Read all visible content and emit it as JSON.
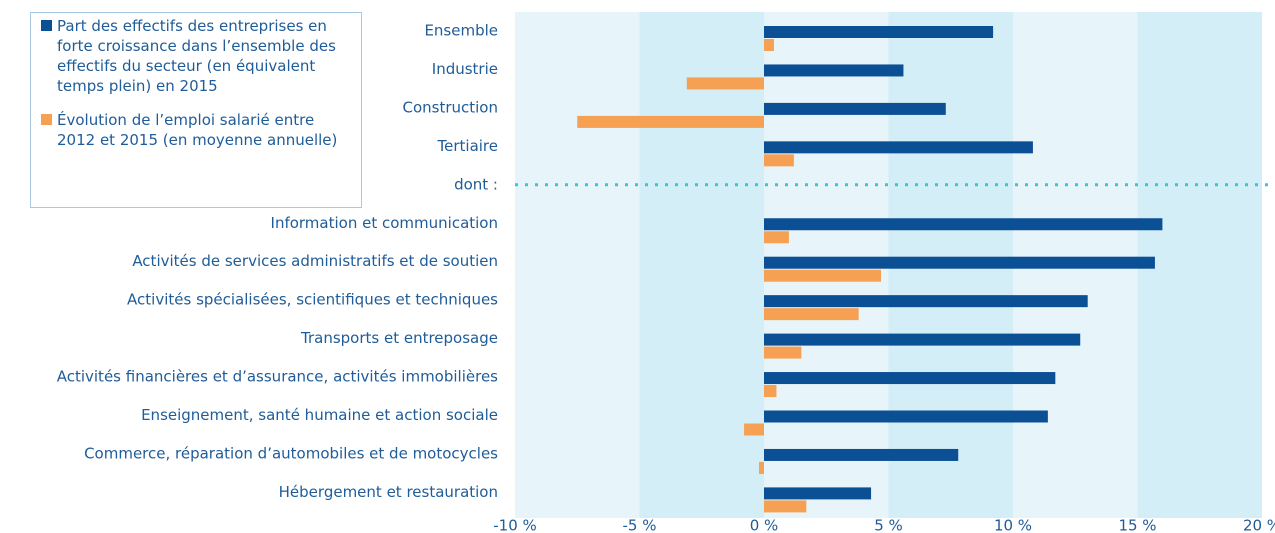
{
  "chart_data": {
    "type": "hbar",
    "categories": [
      "Ensemble",
      "Industrie",
      "Construction",
      "Tertiaire",
      "dont :",
      "Information et communication",
      "Activités de services administratifs et de soutien",
      "Activités spécialisées, scientifiques et techniques",
      "Transports et entreposage",
      "Activités financières et d’assurance, activités immobilières",
      "Enseignement, santé humaine et action sociale",
      "Commerce, réparation d’automobiles et de motocycles",
      "Hébergement et restauration"
    ],
    "series": [
      {
        "name": "Part des effectifs des entreprises en forte croissance dans l’ensemble des effectifs du secteur (en équivalent temps plein) en 2015",
        "color": "#0b4f94",
        "values": [
          9.2,
          5.6,
          7.3,
          10.8,
          null,
          16.0,
          15.7,
          13.0,
          12.7,
          11.7,
          11.4,
          7.8,
          4.3
        ]
      },
      {
        "name": "Évolution de l’emploi salarié entre 2012 et 2015 (en moyenne annuelle)",
        "color": "#f5a052",
        "values": [
          0.4,
          -3.1,
          -7.5,
          1.2,
          null,
          1.0,
          4.7,
          3.8,
          1.5,
          0.5,
          -0.8,
          -0.2,
          1.7
        ]
      }
    ],
    "xlim": [
      -10,
      20
    ],
    "xticks": [
      {
        "value": -10,
        "label": "-10 %"
      },
      {
        "value": -5,
        "label": "-5 %"
      },
      {
        "value": 0,
        "label": "0 %"
      },
      {
        "value": 5,
        "label": "5 %"
      },
      {
        "value": 10,
        "label": "10 %"
      },
      {
        "value": 15,
        "label": "15 %"
      },
      {
        "value": 20,
        "label": "20 %"
      }
    ],
    "legend": "top-left"
  }
}
